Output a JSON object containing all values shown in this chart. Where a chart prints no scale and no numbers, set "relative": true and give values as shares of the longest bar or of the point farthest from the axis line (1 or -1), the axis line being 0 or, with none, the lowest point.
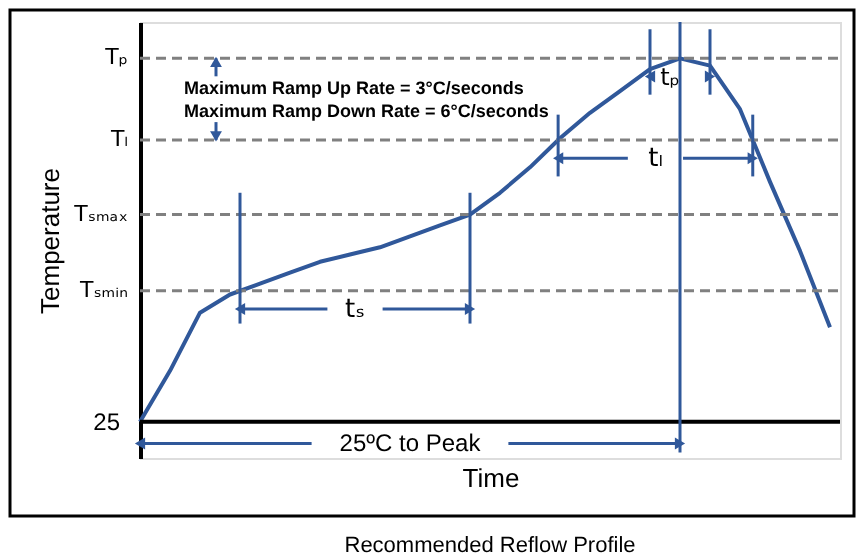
{
  "chart_data": {
    "type": "line",
    "relative": true,
    "title": "Recommended Reflow Profile",
    "xlabel": "Time",
    "ylabel": "Temperature",
    "categories": [
      null,
      null,
      null,
      null,
      null,
      null,
      null,
      null,
      null,
      null,
      null,
      null,
      null,
      null,
      null,
      null,
      null,
      null,
      null,
      null,
      null,
      null,
      null,
      null
    ],
    "series": [
      {
        "color": "#30589a",
        "values": [
          0,
          0.14,
          0.3,
          0.35,
          0.38,
          0.41,
          0.44,
          0.46,
          0.48,
          0.51,
          0.54,
          0.57,
          0.63,
          0.7,
          0.78,
          0.85,
          0.91,
          0.97,
          1.0,
          0.98,
          0.86,
          0.66,
          0.47,
          0.26
        ]
      }
    ],
    "ref_lines": [
      {
        "axis": "y",
        "value": 1.0,
        "label": "Tₚ",
        "color": "#808080",
        "line_style": "dashed"
      },
      {
        "axis": "y",
        "value": 0.775,
        "label": "Tₗ",
        "color": "#808080",
        "line_style": "dashed"
      },
      {
        "axis": "y",
        "value": 0.57,
        "label": "Tₛₘₐₓ",
        "color": "#808080",
        "line_style": "dashed"
      },
      {
        "axis": "y",
        "value": 0.36,
        "label": "Tₛₘᵢₙ",
        "color": "#808080",
        "line_style": "dashed"
      }
    ],
    "annotations": [
      "Maximum Ramp Up Rate = 3°C/seconds",
      "Maximum Ramp Down Rate = 6°C/seconds",
      "tₛ",
      "tₗ",
      "tₚ",
      "25ºC to Peak",
      "25"
    ]
  }
}
